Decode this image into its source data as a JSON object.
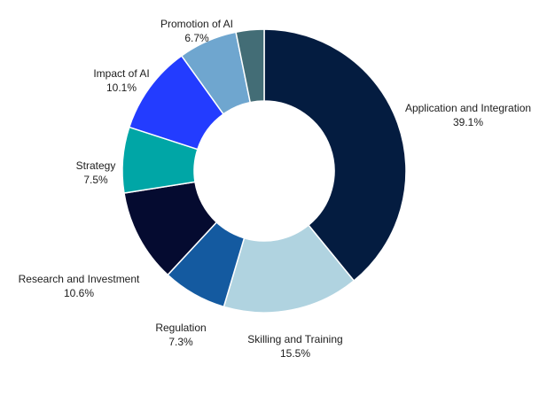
{
  "chart_data": {
    "type": "pie",
    "variant": "donut",
    "title": "",
    "slices": [
      {
        "label": "Application and Integration",
        "value_text": "39.1%",
        "value": 39.1,
        "color": "#041c40"
      },
      {
        "label": "Skilling and Training",
        "value_text": "15.5%",
        "value": 15.5,
        "color": "#b0d3e0"
      },
      {
        "label": "Regulation",
        "value_text": "7.3%",
        "value": 7.3,
        "color": "#145aa0"
      },
      {
        "label": "Research and Investment",
        "value_text": "10.6%",
        "value": 10.6,
        "color": "#050b30"
      },
      {
        "label": "Strategy",
        "value_text": "7.5%",
        "value": 7.5,
        "color": "#00a6a6"
      },
      {
        "label": "Impact of AI",
        "value_text": "10.1%",
        "value": 10.1,
        "color": "#233cff"
      },
      {
        "label": "Promotion of AI",
        "value_text": "6.7%",
        "value": 6.7,
        "color": "#6fa6cf"
      },
      {
        "label": "",
        "value_text": "",
        "value": 3.2,
        "color": "#436d76"
      }
    ]
  }
}
